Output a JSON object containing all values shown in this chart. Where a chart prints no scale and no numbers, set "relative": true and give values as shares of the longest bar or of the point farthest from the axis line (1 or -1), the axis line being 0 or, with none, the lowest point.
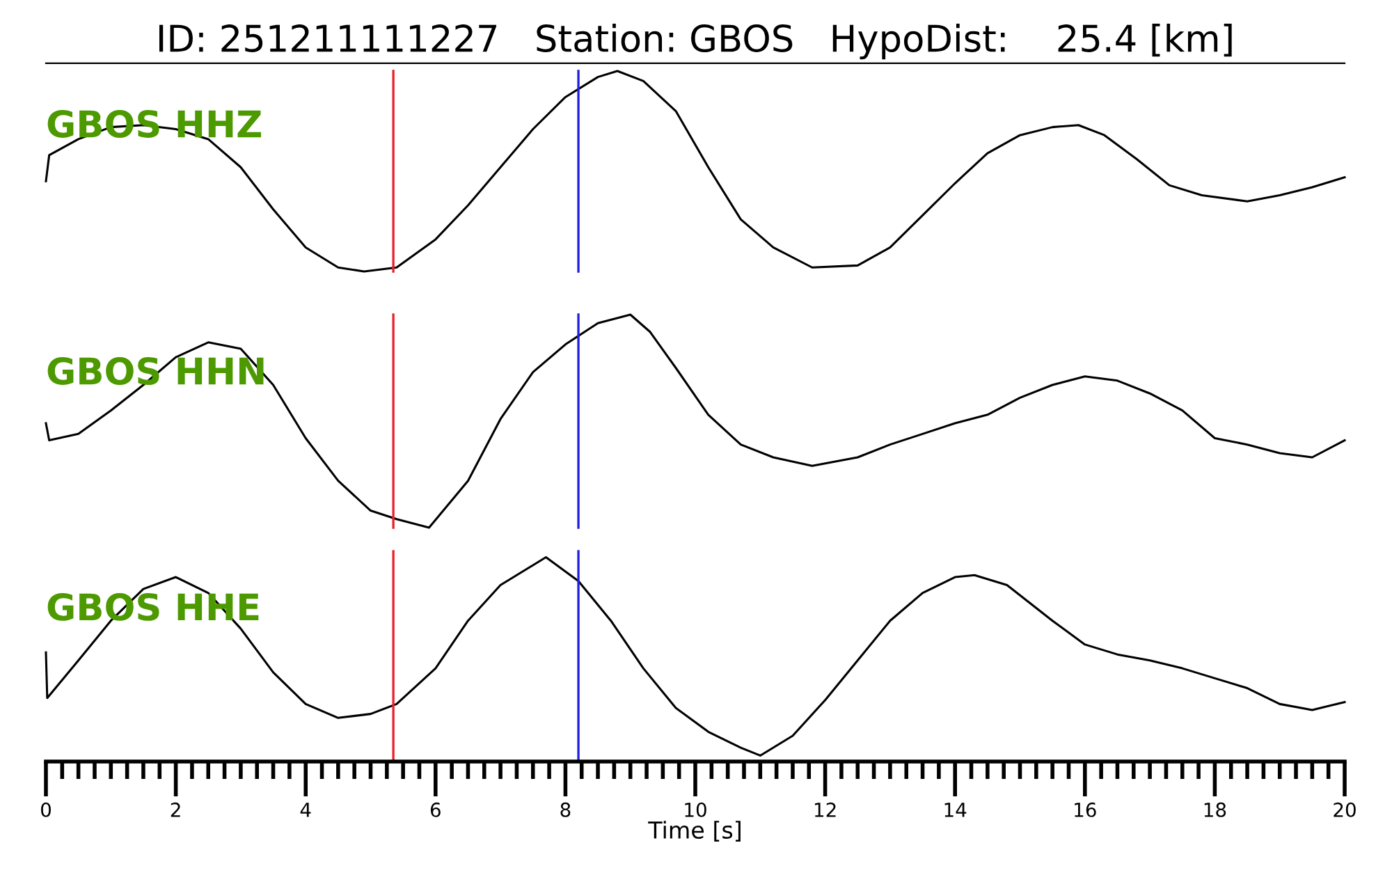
{
  "chart_data": [
    {
      "type": "line",
      "title": "ID: 251211111227   Station: GBOS   HypoDist:    25.4 [km]",
      "relative": true,
      "xlim": [
        0,
        20
      ],
      "tick_labels": false,
      "annotations": [
        "GBOS HHZ"
      ],
      "ref_lines": [
        {
          "axis": "x",
          "value": 5.35,
          "color": "#e8242b"
        },
        {
          "axis": "x",
          "value": 8.2,
          "color": "#2020e0"
        }
      ],
      "series": [
        {
          "color": "#000000",
          "x": [
            0,
            0.05,
            0.5,
            1,
            1.5,
            2,
            2.5,
            3,
            3.5,
            4,
            4.5,
            4.9,
            5.4,
            6,
            6.5,
            7,
            7.5,
            8,
            8.5,
            8.8,
            9.2,
            9.7,
            10.2,
            10.7,
            11.2,
            11.8,
            12.5,
            13,
            13.5,
            14,
            14.5,
            15,
            15.5,
            15.9,
            16.3,
            16.8,
            17.3,
            17.8,
            18.5,
            19,
            19.5,
            20
          ],
          "values": [
            0.45,
            0.58,
            0.66,
            0.72,
            0.73,
            0.71,
            0.66,
            0.52,
            0.31,
            0.12,
            0.02,
            0,
            0.02,
            0.16,
            0.33,
            0.52,
            0.71,
            0.87,
            0.97,
            1,
            0.95,
            0.8,
            0.52,
            0.26,
            0.12,
            0.02,
            0.03,
            0.12,
            0.28,
            0.44,
            0.59,
            0.68,
            0.72,
            0.73,
            0.68,
            0.56,
            0.43,
            0.38,
            0.35,
            0.38,
            0.42,
            0.47
          ]
        }
      ]
    },
    {
      "type": "line",
      "relative": true,
      "xlim": [
        0,
        20
      ],
      "tick_labels": false,
      "annotations": [
        "GBOS HHN"
      ],
      "ref_lines": [
        {
          "axis": "x",
          "value": 5.35,
          "color": "#e8242b"
        },
        {
          "axis": "x",
          "value": 8.2,
          "color": "#2020e0"
        }
      ],
      "series": [
        {
          "color": "#000000",
          "x": [
            0,
            0.05,
            0.5,
            1,
            1.5,
            2,
            2.5,
            3,
            3.5,
            4,
            4.5,
            5,
            5.4,
            5.9,
            6.5,
            7,
            7.5,
            8,
            8.5,
            9,
            9.3,
            9.7,
            10.2,
            10.7,
            11.2,
            11.8,
            12.5,
            13,
            13.5,
            14,
            14.5,
            15,
            15.5,
            16,
            16.5,
            17,
            17.5,
            18,
            18.5,
            19,
            19.5,
            20
          ],
          "values": [
            0.49,
            0.41,
            0.44,
            0.55,
            0.67,
            0.8,
            0.87,
            0.84,
            0.67,
            0.42,
            0.22,
            0.08,
            0.04,
            0,
            0.22,
            0.51,
            0.73,
            0.86,
            0.96,
            1,
            0.92,
            0.75,
            0.53,
            0.39,
            0.33,
            0.29,
            0.33,
            0.39,
            0.44,
            0.49,
            0.53,
            0.61,
            0.67,
            0.71,
            0.69,
            0.63,
            0.55,
            0.42,
            0.39,
            0.35,
            0.33,
            0.41
          ]
        }
      ]
    },
    {
      "type": "line",
      "relative": true,
      "xlim": [
        0,
        20
      ],
      "xticks": [
        0,
        {
          "value": 0.25,
          "label": null
        },
        {
          "value": 0.5,
          "label": null
        },
        {
          "value": 0.75,
          "label": null
        },
        {
          "value": 1,
          "label": null
        },
        {
          "value": 1.25,
          "label": null
        },
        {
          "value": 1.5,
          "label": null
        },
        {
          "value": 1.75,
          "label": null
        },
        2,
        {
          "value": 2.25,
          "label": null
        },
        {
          "value": 2.5,
          "label": null
        },
        {
          "value": 2.75,
          "label": null
        },
        {
          "value": 3,
          "label": null
        },
        {
          "value": 3.25,
          "label": null
        },
        {
          "value": 3.5,
          "label": null
        },
        {
          "value": 3.75,
          "label": null
        },
        4,
        {
          "value": 4.25,
          "label": null
        },
        {
          "value": 4.5,
          "label": null
        },
        {
          "value": 4.75,
          "label": null
        },
        {
          "value": 5,
          "label": null
        },
        {
          "value": 5.25,
          "label": null
        },
        {
          "value": 5.5,
          "label": null
        },
        {
          "value": 5.75,
          "label": null
        },
        6,
        {
          "value": 6.25,
          "label": null
        },
        {
          "value": 6.5,
          "label": null
        },
        {
          "value": 6.75,
          "label": null
        },
        {
          "value": 7,
          "label": null
        },
        {
          "value": 7.25,
          "label": null
        },
        {
          "value": 7.5,
          "label": null
        },
        {
          "value": 7.75,
          "label": null
        },
        8,
        {
          "value": 8.25,
          "label": null
        },
        {
          "value": 8.5,
          "label": null
        },
        {
          "value": 8.75,
          "label": null
        },
        {
          "value": 9,
          "label": null
        },
        {
          "value": 9.25,
          "label": null
        },
        {
          "value": 9.5,
          "label": null
        },
        {
          "value": 9.75,
          "label": null
        },
        10,
        {
          "value": 10.25,
          "label": null
        },
        {
          "value": 10.5,
          "label": null
        },
        {
          "value": 10.75,
          "label": null
        },
        {
          "value": 11,
          "label": null
        },
        {
          "value": 11.25,
          "label": null
        },
        {
          "value": 11.5,
          "label": null
        },
        {
          "value": 11.75,
          "label": null
        },
        12,
        {
          "value": 12.25,
          "label": null
        },
        {
          "value": 12.5,
          "label": null
        },
        {
          "value": 12.75,
          "label": null
        },
        {
          "value": 13,
          "label": null
        },
        {
          "value": 13.25,
          "label": null
        },
        {
          "value": 13.5,
          "label": null
        },
        {
          "value": 13.75,
          "label": null
        },
        14,
        {
          "value": 14.25,
          "label": null
        },
        {
          "value": 14.5,
          "label": null
        },
        {
          "value": 14.75,
          "label": null
        },
        {
          "value": 15,
          "label": null
        },
        {
          "value": 15.25,
          "label": null
        },
        {
          "value": 15.5,
          "label": null
        },
        {
          "value": 15.75,
          "label": null
        },
        16,
        {
          "value": 16.25,
          "label": null
        },
        {
          "value": 16.5,
          "label": null
        },
        {
          "value": 16.75,
          "label": null
        },
        {
          "value": 17,
          "label": null
        },
        {
          "value": 17.25,
          "label": null
        },
        {
          "value": 17.5,
          "label": null
        },
        {
          "value": 17.75,
          "label": null
        },
        18,
        {
          "value": 18.25,
          "label": null
        },
        {
          "value": 18.5,
          "label": null
        },
        {
          "value": 18.75,
          "label": null
        },
        {
          "value": 19,
          "label": null
        },
        {
          "value": 19.25,
          "label": null
        },
        {
          "value": 19.5,
          "label": null
        },
        {
          "value": 19.75,
          "label": null
        },
        20
      ],
      "xlabel": "Time [s]",
      "tick_labels": "x",
      "annotations": [
        "GBOS HHE"
      ],
      "ref_lines": [
        {
          "axis": "x",
          "value": 5.35,
          "color": "#e8242b"
        },
        {
          "axis": "x",
          "value": 8.2,
          "color": "#2020e0"
        }
      ],
      "series": [
        {
          "color": "#000000",
          "x": [
            0,
            0.02,
            0.5,
            1,
            1.5,
            2,
            2.5,
            3,
            3.5,
            4,
            4.5,
            5,
            5.4,
            6,
            6.5,
            7,
            7.5,
            7.7,
            8.2,
            8.7,
            9.2,
            9.7,
            10.2,
            10.7,
            11,
            11.5,
            12,
            12.5,
            13,
            13.5,
            14,
            14.3,
            14.8,
            15.5,
            16,
            16.5,
            17,
            17.5,
            18,
            18.5,
            19,
            19.5,
            20
          ],
          "values": [
            0.52,
            0.29,
            0.48,
            0.68,
            0.84,
            0.9,
            0.82,
            0.64,
            0.42,
            0.26,
            0.19,
            0.21,
            0.26,
            0.44,
            0.68,
            0.86,
            0.96,
            1,
            0.88,
            0.68,
            0.44,
            0.24,
            0.12,
            0.04,
            0,
            0.1,
            0.28,
            0.48,
            0.68,
            0.82,
            0.9,
            0.91,
            0.86,
            0.68,
            0.56,
            0.51,
            0.48,
            0.44,
            0.39,
            0.34,
            0.26,
            0.23,
            0.27
          ]
        }
      ]
    }
  ]
}
